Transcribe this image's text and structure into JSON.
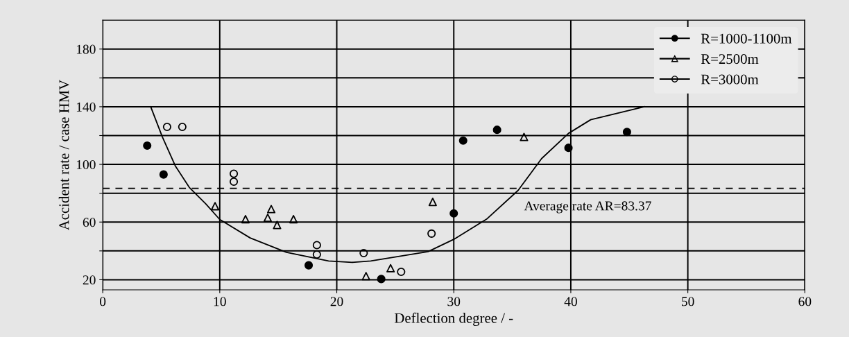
{
  "chart_data": {
    "type": "scatter",
    "xlabel": "Deflection degree / -",
    "ylabel": "Accident rate / case HMV",
    "xlim": [
      0,
      60
    ],
    "ylim": [
      13,
      200
    ],
    "xticks": [
      0,
      10,
      20,
      30,
      40,
      50,
      60
    ],
    "yticks": [
      20,
      {
        "value": 40,
        "label": null
      },
      60,
      {
        "value": 80,
        "label": null
      },
      100,
      {
        "value": 120,
        "label": null
      },
      140,
      {
        "value": 160,
        "label": null
      },
      180
    ],
    "grid": true,
    "legend": "top right",
    "series": [
      {
        "name": "R=1000-1100m",
        "color": "#000000",
        "marker": "circle",
        "x": [
          3.8,
          5.2,
          17.6,
          23.8,
          30.0,
          30.8,
          33.7,
          39.8,
          44.8
        ],
        "values": [
          113,
          93,
          30,
          20.5,
          66,
          116.5,
          124,
          111.5,
          122.5
        ]
      },
      {
        "name": "R=2500m",
        "color": "#000000",
        "marker": "triangle",
        "x": [
          9.6,
          12.2,
          14.4,
          14.1,
          14.9,
          16.3,
          22.5,
          24.6,
          28.2,
          36.0
        ],
        "values": [
          71,
          62,
          69,
          63,
          58,
          62,
          22.5,
          28,
          74,
          119
        ]
      },
      {
        "name": "R=3000m",
        "color": "#000000",
        "marker": "circle",
        "x": [
          5.5,
          6.8,
          11.2,
          11.2,
          18.3,
          18.3,
          22.3,
          25.5,
          28.1
        ],
        "values": [
          126,
          126,
          93.5,
          88,
          44,
          37.5,
          38.5,
          25.5,
          52
        ]
      },
      {
        "type": "line",
        "color": "#000000",
        "marker": "none",
        "line_style": "solid",
        "x": [
          4.1,
          5.1,
          6.2,
          7.4,
          8.8,
          10.0,
          12.6,
          15.7,
          19.3,
          21.3,
          22.9,
          27.8,
          30.0,
          32.8,
          35.5,
          37.5,
          39.8,
          41.7,
          46.3
        ],
        "values": [
          140,
          119,
          99,
          84,
          72.7,
          61.8,
          49,
          39,
          33,
          32,
          33,
          39.5,
          48,
          62,
          82,
          104,
          121.5,
          131,
          140
        ]
      }
    ],
    "ref_lines": [
      {
        "axis": "y",
        "value": 83.37,
        "label": "Average rate AR=83.37",
        "line_style": "dashed",
        "color": "#000000"
      }
    ]
  }
}
